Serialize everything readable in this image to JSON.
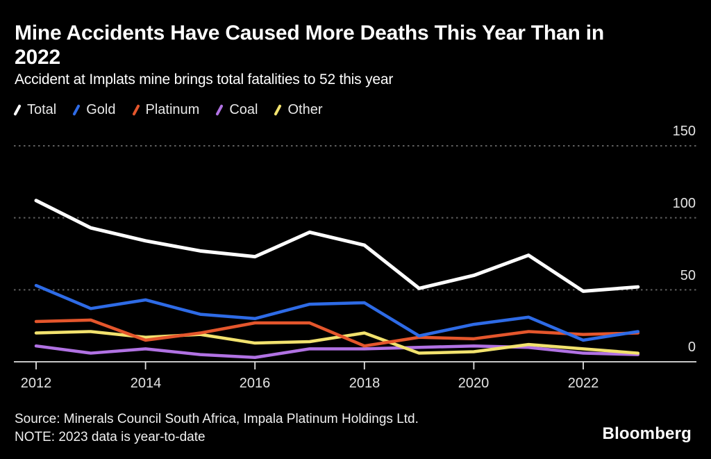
{
  "header": {
    "title_line1": "Mine Accidents Have Caused More Deaths This Year Than in",
    "title_line2": "2022",
    "subtitle": "Accident at Implats mine brings total fatalities to 52 this year"
  },
  "chart_data": {
    "type": "line",
    "title": "Mine Accidents Have Caused More Deaths This Year Than in 2022",
    "subtitle": "Accident at Implats mine brings total fatalities to 52 this year",
    "x": [
      2012,
      2013,
      2014,
      2015,
      2016,
      2017,
      2018,
      2019,
      2020,
      2021,
      2022,
      2023
    ],
    "series": [
      {
        "name": "Total",
        "color": "#ffffff",
        "values": [
          112,
          93,
          84,
          77,
          73,
          90,
          81,
          51,
          60,
          74,
          49,
          52
        ]
      },
      {
        "name": "Gold",
        "color": "#2e6be6",
        "values": [
          53,
          37,
          43,
          33,
          30,
          40,
          41,
          18,
          26,
          31,
          15,
          21
        ]
      },
      {
        "name": "Platinum",
        "color": "#e4562c",
        "values": [
          28,
          29,
          15,
          20,
          27,
          27,
          11,
          17,
          16,
          21,
          19,
          20
        ]
      },
      {
        "name": "Coal",
        "color": "#b172e3",
        "values": [
          11,
          6,
          9,
          5,
          3,
          9,
          9,
          10,
          11,
          10,
          6,
          5
        ]
      },
      {
        "name": "Other",
        "color": "#f2e26e",
        "values": [
          20,
          21,
          17,
          19,
          13,
          14,
          20,
          6,
          7,
          12,
          9,
          6
        ]
      }
    ],
    "ylim": [
      0,
      150
    ],
    "yticks": [
      0,
      50,
      100,
      150
    ],
    "xticks": [
      2012,
      2014,
      2016,
      2018,
      2020,
      2022
    ],
    "grid": "horizontal-dotted",
    "legend_position": "top-left",
    "background": "#000000"
  },
  "footer": {
    "source": "Source: Minerals Council South Africa, Impala Platinum Holdings Ltd.",
    "note": "NOTE: 2023 data is year-to-date",
    "brand": "Bloomberg"
  }
}
